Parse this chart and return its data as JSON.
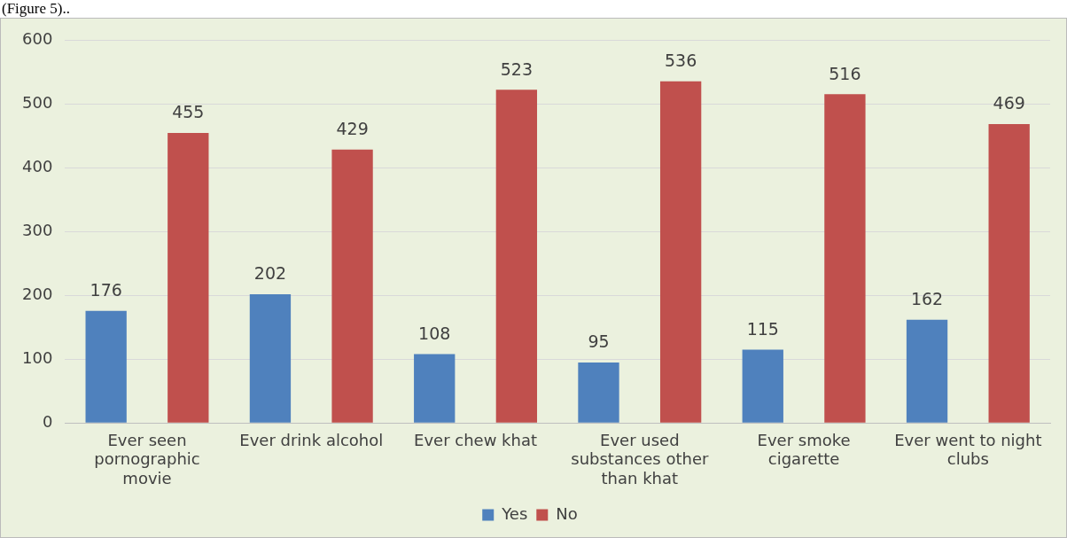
{
  "chart_data": {
    "type": "bar",
    "categories": [
      "Ever seen pornographic movie",
      "Ever drink alcohol",
      "Ever chew khat",
      "Ever used substances other than khat",
      "Ever smoke cigarette",
      "Ever went to night clubs"
    ],
    "series": [
      {
        "name": "Yes",
        "color": "#4f81bd",
        "values": [
          176,
          202,
          108,
          95,
          115,
          162
        ]
      },
      {
        "name": "No",
        "color": "#c0504d",
        "values": [
          455,
          429,
          523,
          536,
          516,
          469
        ]
      }
    ],
    "ylim": [
      0,
      600
    ],
    "yticks": [
      0,
      100,
      200,
      300,
      400,
      500,
      600
    ],
    "grid": "y",
    "legend": "bottom",
    "data_labels": true,
    "annotations": [
      "(Figure 5).."
    ]
  }
}
